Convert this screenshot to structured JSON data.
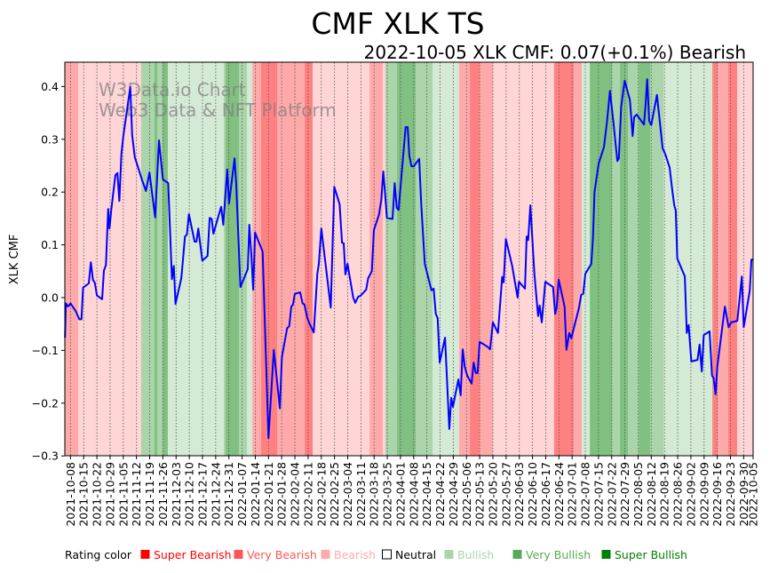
{
  "chart_data": {
    "type": "line",
    "title": "CMF XLK TS",
    "subtitle": "2022-10-05 XLK CMF: 0.07(+0.1%) Bearish",
    "watermark": [
      "W3Data.io Chart",
      "Web3 Data & NFT Platform"
    ],
    "ylabel": "XLK CMF",
    "xlabel": "",
    "ylim": [
      -0.3,
      0.445
    ],
    "x_unit": "days since 2021-10-05",
    "x_range": [
      0,
      365
    ],
    "yticks": [
      0.4,
      0.3,
      0.2,
      0.1,
      0.0,
      -0.1,
      -0.2,
      -0.3
    ],
    "ytick_labels": [
      "0.4",
      "0.3",
      "0.2",
      "0.1",
      "0.0",
      "−0.1",
      "−0.2",
      "−0.3"
    ],
    "xtick_days_first": 3,
    "xtick_step_days": 7,
    "xtick_labels": [
      "2021-10-08",
      "2021-10-15",
      "2021-10-22",
      "2021-10-29",
      "2021-11-05",
      "2021-11-12",
      "2021-11-19",
      "2021-11-26",
      "2021-12-03",
      "2021-12-10",
      "2021-12-17",
      "2021-12-24",
      "2021-12-31",
      "2022-01-07",
      "2022-01-14",
      "2022-01-21",
      "2022-01-28",
      "2022-02-04",
      "2022-02-11",
      "2022-02-18",
      "2022-02-25",
      "2022-03-04",
      "2022-03-11",
      "2022-03-18",
      "2022-03-25",
      "2022-04-01",
      "2022-04-08",
      "2022-04-15",
      "2022-04-22",
      "2022-04-29",
      "2022-05-06",
      "2022-05-13",
      "2022-05-20",
      "2022-05-27",
      "2022-06-03",
      "2022-06-10",
      "2022-06-17",
      "2022-06-24",
      "2022-07-01",
      "2022-07-08",
      "2022-07-15",
      "2022-07-22",
      "2022-07-29",
      "2022-08-05",
      "2022-08-12",
      "2022-08-19",
      "2022-08-26",
      "2022-09-02",
      "2022-09-09",
      "2022-09-16",
      "2022-09-23",
      "2022-09-30",
      "2022-10-05"
    ],
    "series": [
      {
        "name": "XLK CMF",
        "color": "#0000ff",
        "points": [
          [
            0.1,
            -0.076
          ],
          [
            0.5,
            -0.011
          ],
          [
            1.7,
            -0.017
          ],
          [
            3.0,
            -0.011
          ],
          [
            5.7,
            -0.025
          ],
          [
            7.7,
            -0.041
          ],
          [
            8.8,
            -0.041
          ],
          [
            9.7,
            0.019
          ],
          [
            12.7,
            0.027
          ],
          [
            13.8,
            0.067
          ],
          [
            14.9,
            0.034
          ],
          [
            15.9,
            0.028
          ],
          [
            17.0,
            0.004
          ],
          [
            19.8,
            -0.003
          ],
          [
            20.7,
            0.051
          ],
          [
            21.8,
            0.062
          ],
          [
            23.0,
            0.168
          ],
          [
            23.7,
            0.131
          ],
          [
            24.6,
            0.165
          ],
          [
            26.8,
            0.232
          ],
          [
            27.9,
            0.236
          ],
          [
            28.9,
            0.183
          ],
          [
            30.0,
            0.272
          ],
          [
            31.1,
            0.308
          ],
          [
            34.7,
            0.399
          ],
          [
            35.7,
            0.308
          ],
          [
            37.1,
            0.266
          ],
          [
            41.0,
            0.222
          ],
          [
            43.0,
            0.202
          ],
          [
            44.9,
            0.237
          ],
          [
            47.9,
            0.152
          ],
          [
            49.9,
            0.298
          ],
          [
            52.0,
            0.224
          ],
          [
            54.8,
            0.217
          ],
          [
            56.8,
            0.035
          ],
          [
            57.8,
            0.06
          ],
          [
            58.7,
            -0.012
          ],
          [
            61.8,
            0.037
          ],
          [
            63.7,
            0.116
          ],
          [
            64.7,
            0.119
          ],
          [
            65.8,
            0.158
          ],
          [
            68.8,
            0.106
          ],
          [
            69.8,
            0.106
          ],
          [
            70.8,
            0.131
          ],
          [
            72.9,
            0.07
          ],
          [
            75.7,
            0.079
          ],
          [
            76.8,
            0.151
          ],
          [
            77.9,
            0.149
          ],
          [
            78.8,
            0.121
          ],
          [
            82.9,
            0.172
          ],
          [
            84.0,
            0.138
          ],
          [
            86.1,
            0.243
          ],
          [
            87.1,
            0.178
          ],
          [
            90.0,
            0.264
          ],
          [
            90.9,
            0.214
          ],
          [
            93.1,
            0.02
          ],
          [
            97.0,
            0.054
          ],
          [
            97.8,
            0.138
          ],
          [
            98.9,
            0.081
          ],
          [
            99.9,
            0.015
          ],
          [
            100.9,
            0.123
          ],
          [
            104.9,
            0.087
          ],
          [
            108.0,
            -0.266
          ],
          [
            110.8,
            -0.099
          ],
          [
            114.0,
            -0.21
          ],
          [
            115.1,
            -0.113
          ],
          [
            117.9,
            -0.058
          ],
          [
            119.0,
            -0.054
          ],
          [
            120.1,
            -0.017
          ],
          [
            121.0,
            -0.013
          ],
          [
            122.0,
            0.007
          ],
          [
            124.8,
            0.01
          ],
          [
            126.1,
            -0.011
          ],
          [
            127.0,
            -0.013
          ],
          [
            128.6,
            -0.039
          ],
          [
            130.0,
            -0.051
          ],
          [
            132.0,
            -0.066
          ],
          [
            133.9,
            0.045
          ],
          [
            134.7,
            0.064
          ],
          [
            136.0,
            0.131
          ],
          [
            141.0,
            -0.019
          ],
          [
            142.9,
            0.21
          ],
          [
            145.7,
            0.177
          ],
          [
            147.0,
            0.104
          ],
          [
            147.9,
            0.103
          ],
          [
            148.8,
            0.044
          ],
          [
            149.9,
            0.064
          ],
          [
            152.9,
            0.0
          ],
          [
            154.0,
            -0.01
          ],
          [
            155.6,
            0.002
          ],
          [
            156.7,
            0.003
          ],
          [
            159.8,
            0.015
          ],
          [
            160.9,
            0.037
          ],
          [
            162.8,
            0.05
          ],
          [
            163.9,
            0.128
          ],
          [
            166.6,
            0.157
          ],
          [
            167.8,
            0.185
          ],
          [
            168.9,
            0.239
          ],
          [
            170.8,
            0.151
          ],
          [
            173.8,
            0.149
          ],
          [
            174.9,
            0.217
          ],
          [
            176.0,
            0.17
          ],
          [
            177.0,
            0.166
          ],
          [
            180.7,
            0.323
          ],
          [
            181.8,
            0.323
          ],
          [
            182.7,
            0.269
          ],
          [
            183.8,
            0.249
          ],
          [
            185.1,
            0.249
          ],
          [
            187.9,
            0.263
          ],
          [
            189.0,
            0.177
          ],
          [
            190.9,
            0.064
          ],
          [
            194.4,
            0.014
          ],
          [
            195.6,
            0.017
          ],
          [
            196.7,
            -0.031
          ],
          [
            197.7,
            -0.039
          ],
          [
            198.8,
            -0.123
          ],
          [
            201.6,
            -0.076
          ],
          [
            203.9,
            -0.249
          ],
          [
            204.9,
            -0.19
          ],
          [
            205.8,
            -0.207
          ],
          [
            208.7,
            -0.155
          ],
          [
            209.9,
            -0.185
          ],
          [
            211.0,
            -0.098
          ],
          [
            212.1,
            -0.131
          ],
          [
            213.4,
            -0.148
          ],
          [
            215.7,
            -0.163
          ],
          [
            216.8,
            -0.123
          ],
          [
            217.9,
            -0.143
          ],
          [
            218.9,
            -0.143
          ],
          [
            220.0,
            -0.084
          ],
          [
            224.1,
            -0.093
          ],
          [
            225.5,
            -0.098
          ],
          [
            227.0,
            -0.047
          ],
          [
            229.7,
            -0.067
          ],
          [
            231.9,
            0.039
          ],
          [
            232.7,
            0.029
          ],
          [
            233.9,
            0.111
          ],
          [
            237.2,
            0.061
          ],
          [
            240.1,
            0.0
          ],
          [
            240.8,
            0.03
          ],
          [
            244.0,
            0.017
          ],
          [
            244.9,
            0.116
          ],
          [
            245.7,
            0.109
          ],
          [
            246.9,
            0.175
          ],
          [
            249.0,
            0.045
          ],
          [
            251.0,
            -0.035
          ],
          [
            251.8,
            -0.015
          ],
          [
            252.9,
            -0.047
          ],
          [
            254.8,
            0.03
          ],
          [
            258.9,
            0.02
          ],
          [
            260.0,
            -0.031
          ],
          [
            260.8,
            -0.019
          ],
          [
            261.9,
            0.034
          ],
          [
            265.0,
            -0.017
          ],
          [
            266.0,
            -0.099
          ],
          [
            267.5,
            -0.067
          ],
          [
            268.6,
            -0.077
          ],
          [
            272.6,
            -0.02
          ],
          [
            273.8,
            0.005
          ],
          [
            274.9,
            0.007
          ],
          [
            276.0,
            0.045
          ],
          [
            279.2,
            0.064
          ],
          [
            280.1,
            0.114
          ],
          [
            280.9,
            0.2
          ],
          [
            283.1,
            0.254
          ],
          [
            285.9,
            0.285
          ],
          [
            287.5,
            0.332
          ],
          [
            289.1,
            0.392
          ],
          [
            290.9,
            0.332
          ],
          [
            293.0,
            0.259
          ],
          [
            293.8,
            0.264
          ],
          [
            295.0,
            0.362
          ],
          [
            296.9,
            0.411
          ],
          [
            299.7,
            0.374
          ],
          [
            301.1,
            0.306
          ],
          [
            301.9,
            0.342
          ],
          [
            303.2,
            0.347
          ],
          [
            307.1,
            0.328
          ],
          [
            307.9,
            0.363
          ],
          [
            308.8,
            0.414
          ],
          [
            309.9,
            0.335
          ],
          [
            311.0,
            0.327
          ],
          [
            314.0,
            0.384
          ],
          [
            317.0,
            0.283
          ],
          [
            318.5,
            0.271
          ],
          [
            320.7,
            0.247
          ],
          [
            322.3,
            0.199
          ],
          [
            323.2,
            0.175
          ],
          [
            324.0,
            0.165
          ],
          [
            324.8,
            0.074
          ],
          [
            328.8,
            0.04
          ],
          [
            329.8,
            -0.067
          ],
          [
            330.8,
            -0.052
          ],
          [
            332.2,
            -0.121
          ],
          [
            335.5,
            -0.118
          ],
          [
            336.6,
            -0.089
          ],
          [
            337.8,
            -0.14
          ],
          [
            338.8,
            -0.071
          ],
          [
            341.9,
            -0.064
          ],
          [
            343.2,
            -0.148
          ],
          [
            344.0,
            -0.152
          ],
          [
            345.1,
            -0.183
          ],
          [
            346.0,
            -0.131
          ],
          [
            350.0,
            -0.017
          ],
          [
            352.0,
            -0.056
          ],
          [
            353.4,
            -0.047
          ],
          [
            356.6,
            -0.044
          ],
          [
            359.0,
            0.04
          ],
          [
            360.0,
            -0.056
          ],
          [
            363.2,
            0.013
          ],
          [
            364.1,
            0.072
          ],
          [
            365.0,
            0.072
          ]
        ]
      }
    ],
    "rating_bands": [
      [
        0,
        7.1,
        -2
      ],
      [
        7.1,
        40.5,
        -1
      ],
      [
        40.5,
        47.6,
        2
      ],
      [
        47.6,
        49,
        3
      ],
      [
        49,
        51.8,
        2
      ],
      [
        51.8,
        54.6,
        3
      ],
      [
        54.6,
        84.3,
        1
      ],
      [
        84.3,
        85.3,
        2
      ],
      [
        85.3,
        92.3,
        3
      ],
      [
        92.3,
        96.6,
        2
      ],
      [
        96.6,
        99.4,
        1
      ],
      [
        99.4,
        104.1,
        -2
      ],
      [
        104.1,
        112.6,
        -3
      ],
      [
        112.6,
        127.2,
        -2
      ],
      [
        127.2,
        131.4,
        -3
      ],
      [
        131.4,
        161.6,
        -1
      ],
      [
        161.6,
        168.6,
        -2
      ],
      [
        168.6,
        170,
        -1
      ],
      [
        170,
        176.2,
        2
      ],
      [
        176.2,
        186,
        3
      ],
      [
        186,
        195,
        2
      ],
      [
        195,
        209.1,
        1
      ],
      [
        209.1,
        214.8,
        -2
      ],
      [
        214.8,
        220,
        -3
      ],
      [
        220,
        227,
        -2
      ],
      [
        227,
        259.5,
        -1
      ],
      [
        259.5,
        269.8,
        -3
      ],
      [
        269.8,
        274.1,
        -2
      ],
      [
        274.1,
        278.4,
        1
      ],
      [
        278.4,
        290.2,
        3
      ],
      [
        290.2,
        294.4,
        2
      ],
      [
        294.4,
        298.6,
        3
      ],
      [
        298.6,
        304.3,
        2
      ],
      [
        304.3,
        310.4,
        3
      ],
      [
        310.4,
        317.5,
        2
      ],
      [
        317.5,
        343.4,
        1
      ],
      [
        343.4,
        346.2,
        -3
      ],
      [
        346.2,
        351.8,
        -2
      ],
      [
        351.8,
        356.5,
        -3
      ],
      [
        356.5,
        365,
        -1
      ]
    ],
    "band_colors": {
      "-3": "#ff8080",
      "-2": "#ffaaaa",
      "-1": "#ffd5d5",
      "0": "#ffffff",
      "1": "#d5ead5",
      "2": "#aad5aa",
      "3": "#80c080"
    },
    "legend": {
      "title": "Rating color",
      "placement": "bottom",
      "items": [
        {
          "label": "Super Bearish",
          "color": "#ff0000",
          "text_color": "#ff0000"
        },
        {
          "label": "Very Bearish",
          "color": "#ff5555",
          "text_color": "#ff5555"
        },
        {
          "label": "Bearish",
          "color": "#ffaaaa",
          "text_color": "#ffaaaa"
        },
        {
          "label": "Neutral",
          "color": "#ffffff",
          "text_color": "#000000"
        },
        {
          "label": "Bullish",
          "color": "#aad5aa",
          "text_color": "#aad5aa"
        },
        {
          "label": "Very Bullish",
          "color": "#55aa55",
          "text_color": "#55aa55"
        },
        {
          "label": "Super Bullish",
          "color": "#008000",
          "text_color": "#008000"
        }
      ]
    }
  }
}
